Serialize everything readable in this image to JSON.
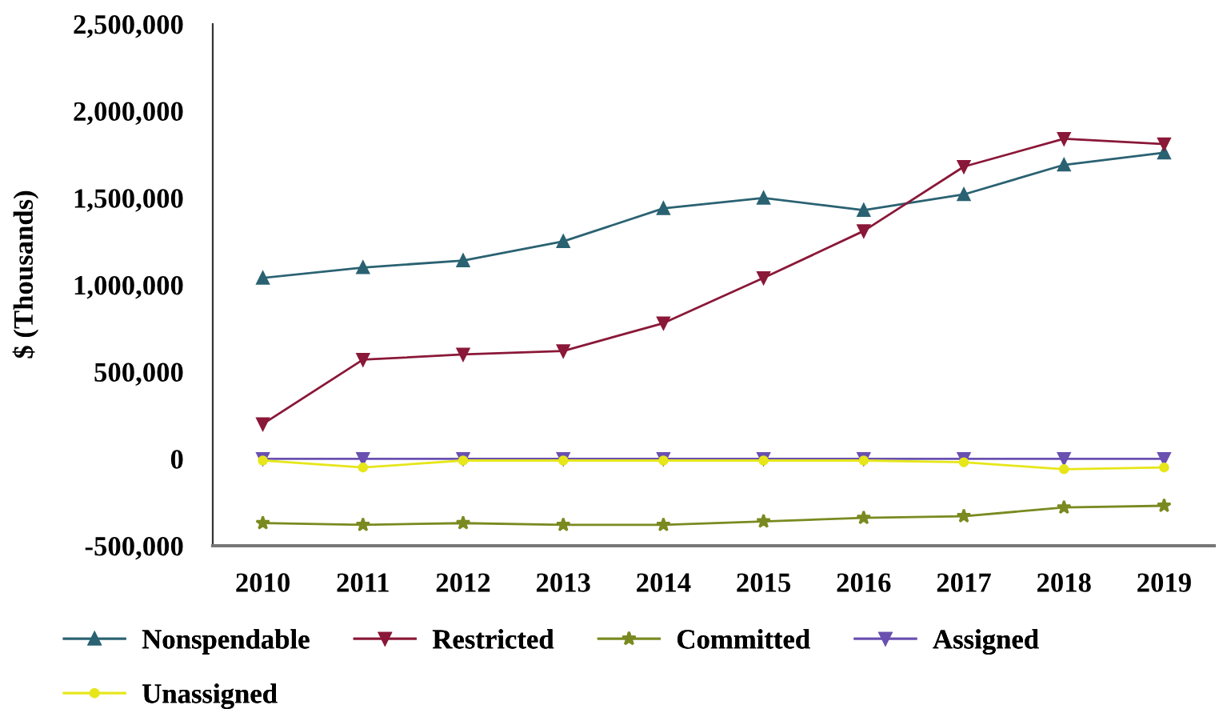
{
  "chart_data": {
    "type": "line",
    "ylabel": "$ (Thousands)",
    "categories": [
      "2010",
      "2011",
      "2012",
      "2013",
      "2014",
      "2015",
      "2016",
      "2017",
      "2018",
      "2019"
    ],
    "series": [
      {
        "name": "Nonspendable",
        "color": "#2a6272",
        "marker": "triangle",
        "values": [
          1040000,
          1100000,
          1140000,
          1250000,
          1440000,
          1500000,
          1430000,
          1520000,
          1690000,
          1760000
        ]
      },
      {
        "name": "Restricted",
        "color": "#8a1838",
        "marker": "triangle_down",
        "values": [
          200000,
          570000,
          600000,
          620000,
          780000,
          1040000,
          1310000,
          1680000,
          1840000,
          1810000
        ]
      },
      {
        "name": "Committed",
        "color": "#7a8a20",
        "marker": "star",
        "values": [
          -370000,
          -380000,
          -370000,
          -380000,
          -380000,
          -360000,
          -340000,
          -330000,
          -280000,
          -270000
        ]
      },
      {
        "name": "Assigned",
        "color": "#6a50b0",
        "marker": "triangle_down",
        "values": [
          0,
          0,
          0,
          0,
          0,
          0,
          0,
          0,
          0,
          0
        ]
      },
      {
        "name": "Unassigned",
        "color": "#e6e61a",
        "marker": "circle",
        "values": [
          -10000,
          -50000,
          -10000,
          -10000,
          -10000,
          -10000,
          -10000,
          -20000,
          -60000,
          -50000
        ]
      }
    ],
    "ylim": [
      -500000,
      2500000
    ],
    "yticks": [
      {
        "value": -500000,
        "label": "-500,000"
      },
      {
        "value": 0,
        "label": "0"
      },
      {
        "value": 500000,
        "label": "500,000"
      },
      {
        "value": 1000000,
        "label": "1,000,000"
      },
      {
        "value": 1500000,
        "label": "1,500,000"
      },
      {
        "value": 2000000,
        "label": "2,000,000"
      },
      {
        "value": 2500000,
        "label": "2,500,000"
      }
    ],
    "grid": false,
    "legend": "bottom",
    "line_style": "solid"
  }
}
